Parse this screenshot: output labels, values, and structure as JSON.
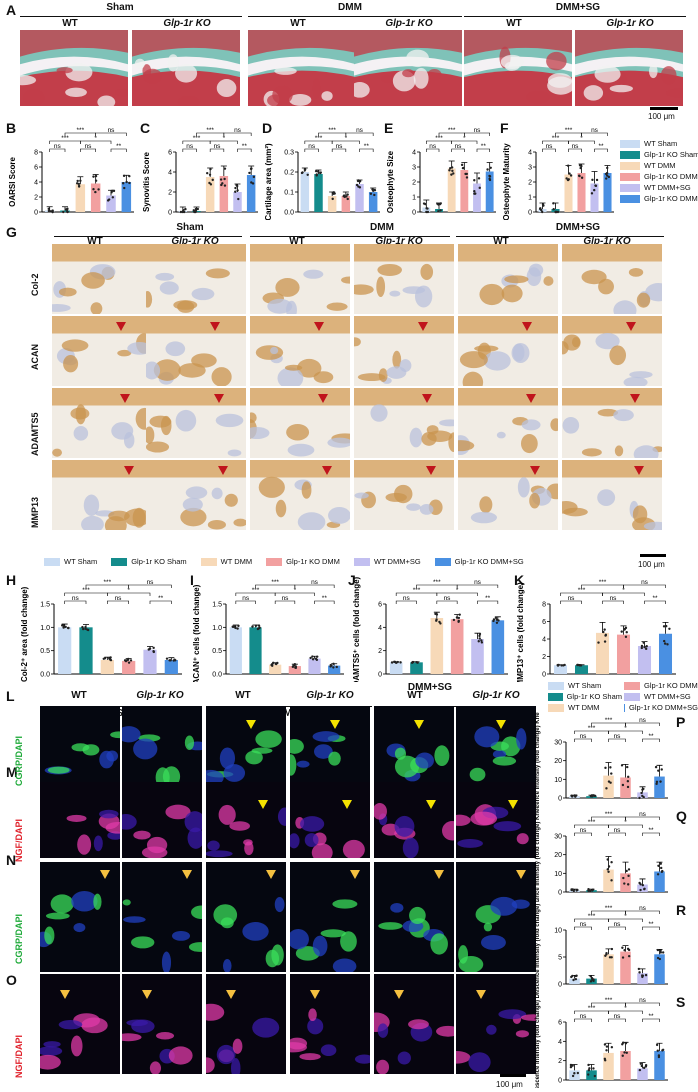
{
  "panels": {
    "A": "A",
    "B": "B",
    "C": "C",
    "D": "D",
    "E": "E",
    "F": "F",
    "G": "G",
    "H": "H",
    "I": "I",
    "J": "J",
    "K": "K",
    "L": "L",
    "M": "M",
    "N": "N",
    "O": "O",
    "P": "P",
    "Q": "Q",
    "R": "R",
    "S": "S"
  },
  "groups": {
    "sham": "Sham",
    "dmm": "DMM",
    "dmmsg": "DMM+SG"
  },
  "genotypes": {
    "wt": "WT",
    "ko": "Glp-1r KO"
  },
  "scale": {
    "a": "100 μm",
    "g": "100 μm",
    "o": "100 μm"
  },
  "stain_rows": {
    "col2": "Col-2",
    "acan": "ACAN",
    "adamts5": "ADAMTS5",
    "mmp13": "MMP13"
  },
  "if_rows": {
    "l": "CGRP/DAPI",
    "m": "NGF/DAPI",
    "n": "CGRP/DAPI",
    "o": "NGF/DAPI"
  },
  "legend_f": [
    "WT Sham",
    "Glp-1r KO Sham",
    "WT DMM",
    "Glp-1r KO DMM",
    "WT DMM+SG",
    "Glp-1r KO DMM+SG"
  ],
  "legend_g": [
    "WT Sham",
    "Glp-1r KO Sham",
    "WT DMM",
    "Glp-1r KO DMM",
    "WT DMM+SG",
    "Glp-1r KO DMM+SG"
  ],
  "legend_lm": [
    "WT Sham",
    "Glp-1r KO DMM",
    "Glp-1r KO Sham",
    "WT DMM+SG",
    "WT DMM",
    "Glp-1r KO DMM+SG"
  ],
  "colors": [
    "#c9dcf3",
    "#148c8c",
    "#f7d9b8",
    "#f2a0a0",
    "#c2bff0",
    "#4a90e2"
  ],
  "chart_data": [
    {
      "id": "B",
      "type": "bar",
      "ylabel": "OARSI Score",
      "ylim": [
        0,
        8
      ],
      "yticks": [
        0,
        2,
        4,
        6,
        8
      ],
      "values": [
        0.2,
        0.2,
        3.7,
        3.8,
        2.2,
        4.0
      ],
      "err": [
        0.5,
        0.5,
        1.0,
        1.2,
        0.7,
        0.9
      ]
    },
    {
      "id": "C",
      "type": "bar",
      "ylabel": "Synovitis Score",
      "ylim": [
        0,
        6
      ],
      "yticks": [
        0,
        2,
        4,
        6
      ],
      "values": [
        0.1,
        0.1,
        3.5,
        3.6,
        2.0,
        3.7
      ],
      "err": [
        0.4,
        0.4,
        0.9,
        1.0,
        0.8,
        0.9
      ]
    },
    {
      "id": "D",
      "type": "bar",
      "ylabel": "Cartilage area (mm²)",
      "ylim": [
        0,
        0.3
      ],
      "yticks": [
        0.0,
        0.1,
        0.2,
        0.3
      ],
      "values": [
        0.2,
        0.19,
        0.08,
        0.08,
        0.14,
        0.1
      ],
      "err": [
        0.02,
        0.02,
        0.02,
        0.02,
        0.02,
        0.02
      ]
    },
    {
      "id": "E",
      "type": "bar",
      "ylabel": "Osteophyte Size",
      "ylim": [
        0,
        4
      ],
      "yticks": [
        0,
        1,
        2,
        3,
        4
      ],
      "values": [
        0.3,
        0.2,
        2.9,
        2.8,
        1.9,
        2.7
      ],
      "err": [
        0.5,
        0.4,
        0.5,
        0.5,
        0.7,
        0.6
      ]
    },
    {
      "id": "F",
      "type": "bar",
      "ylabel": "Osteophyte Maturity",
      "ylim": [
        0,
        4
      ],
      "yticks": [
        0,
        1,
        2,
        3,
        4
      ],
      "values": [
        0.2,
        0.2,
        2.5,
        2.6,
        1.9,
        2.6
      ],
      "err": [
        0.4,
        0.4,
        0.6,
        0.6,
        0.8,
        0.5
      ]
    },
    {
      "id": "H",
      "type": "bar",
      "ylabel": "% Col-2⁺ area (fold change)",
      "ylim": [
        0,
        1.5
      ],
      "yticks": [
        0.0,
        0.5,
        1.0,
        1.5
      ],
      "values": [
        1.0,
        1.0,
        0.3,
        0.28,
        0.52,
        0.3
      ],
      "err": [
        0.07,
        0.06,
        0.06,
        0.05,
        0.07,
        0.05
      ]
    },
    {
      "id": "I",
      "type": "bar",
      "ylabel": "% ACAN⁺ cells (fold change)",
      "ylim": [
        0,
        1.5
      ],
      "yticks": [
        0.0,
        0.5,
        1.0,
        1.5
      ],
      "values": [
        1.0,
        1.0,
        0.2,
        0.17,
        0.33,
        0.18
      ],
      "err": [
        0.05,
        0.05,
        0.04,
        0.04,
        0.05,
        0.04
      ]
    },
    {
      "id": "J",
      "type": "bar",
      "ylabel": "% ADAMTS5⁺ cells (fold change)",
      "ylim": [
        0,
        6
      ],
      "yticks": [
        0,
        2,
        4,
        6
      ],
      "values": [
        1.0,
        1.0,
        4.8,
        4.7,
        3.0,
        4.6
      ],
      "err": [
        0.05,
        0.05,
        0.5,
        0.4,
        0.5,
        0.3
      ]
    },
    {
      "id": "K",
      "type": "bar",
      "ylabel": "% MMP13⁺ cells (fold change)",
      "ylim": [
        0,
        8
      ],
      "yticks": [
        0,
        2,
        4,
        6,
        8
      ],
      "values": [
        1.0,
        1.0,
        4.7,
        4.5,
        3.2,
        4.6
      ],
      "err": [
        0.05,
        0.05,
        1.2,
        1.0,
        0.5,
        1.3
      ]
    },
    {
      "id": "P",
      "type": "bar",
      "ylabel": "CGRP fluorescence intensity (fold change) Knee Joint",
      "ylim": [
        0,
        30
      ],
      "yticks": [
        0,
        10,
        20,
        30
      ],
      "values": [
        1.0,
        1.0,
        12.0,
        11.0,
        3.0,
        11.5
      ],
      "err": [
        0.5,
        0.5,
        7.0,
        7.0,
        3.0,
        6.0
      ]
    },
    {
      "id": "Q",
      "type": "bar",
      "ylabel": "NGF fluorescence intensity (fold change) Knee Joint",
      "ylim": [
        0,
        30
      ],
      "yticks": [
        0,
        10,
        20,
        30
      ],
      "values": [
        1.0,
        1.0,
        12.0,
        10.0,
        4.0,
        11.0
      ],
      "err": [
        0.5,
        0.5,
        7.0,
        6.0,
        3.0,
        5.0
      ]
    },
    {
      "id": "R",
      "type": "bar",
      "ylabel": "CGRP fluorescence intensity (fold change) DRG",
      "ylim": [
        0,
        10
      ],
      "yticks": [
        0,
        5,
        10
      ],
      "values": [
        1.0,
        1.0,
        5.5,
        6.0,
        2.0,
        5.5
      ],
      "err": [
        0.6,
        0.6,
        1.0,
        1.1,
        0.8,
        0.9
      ]
    },
    {
      "id": "S",
      "type": "bar",
      "ylabel": "NGF fluorescence intensity (fold change) DRG",
      "ylim": [
        0,
        6
      ],
      "yticks": [
        0,
        2,
        4,
        6
      ],
      "values": [
        1.0,
        1.0,
        2.8,
        3.0,
        1.2,
        3.0
      ],
      "err": [
        0.6,
        0.6,
        1.0,
        0.9,
        0.6,
        0.8
      ]
    }
  ],
  "sig": {
    "ns": "ns",
    "one": "*",
    "two": "**",
    "three": "***"
  }
}
